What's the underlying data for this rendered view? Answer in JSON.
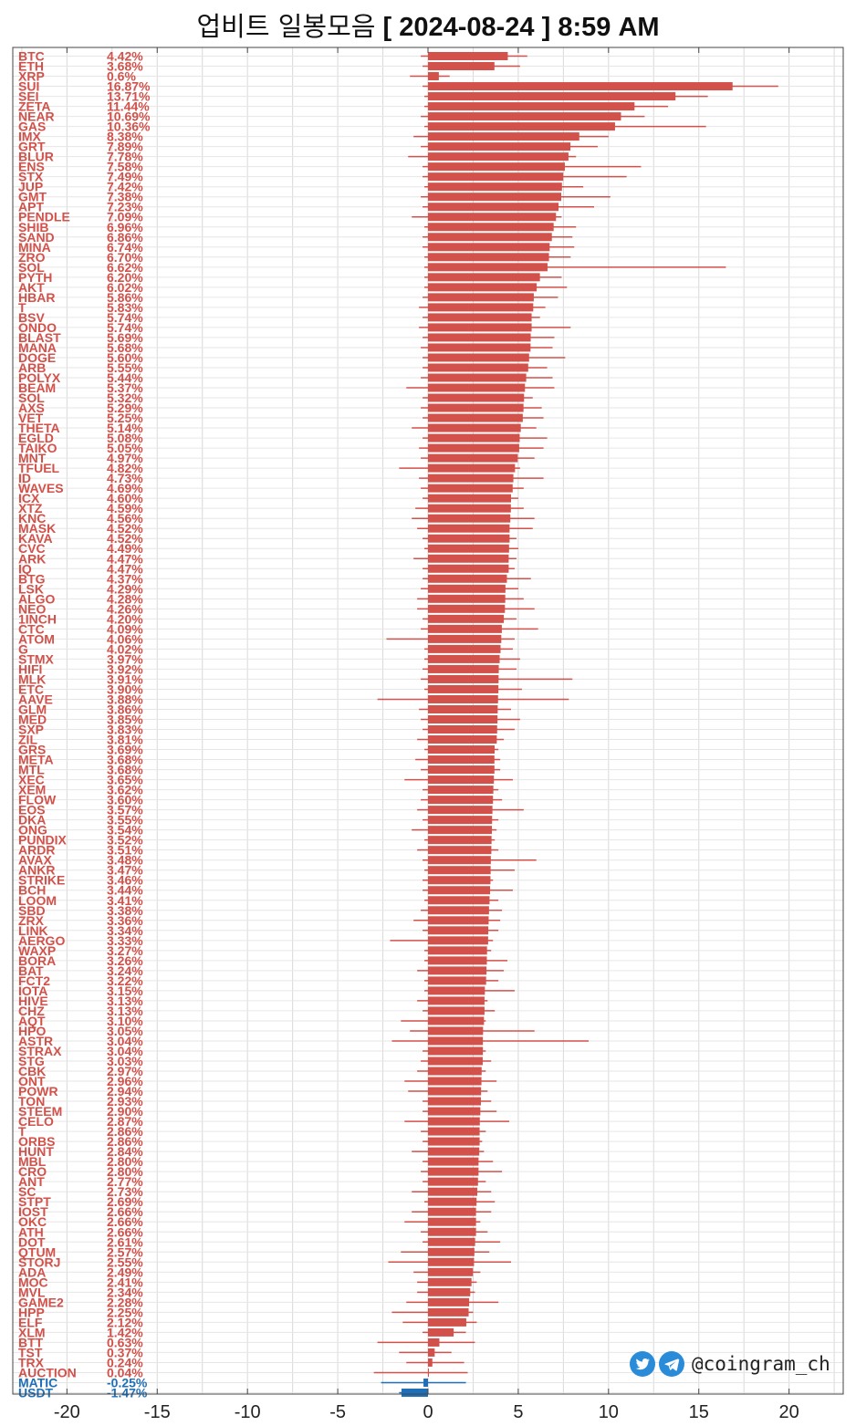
{
  "title": {
    "korean": "업비트 일봉모음",
    "date_bracketed": "[ 2024-08-24 ]",
    "time": "8:59 AM"
  },
  "brand": {
    "handle": "@coingram_ch",
    "icons": [
      "twitter-bird-icon",
      "telegram-plane-icon"
    ]
  },
  "colors": {
    "up": "#D2514A",
    "down": "#1F6FB8",
    "grid": "#d9d9d9"
  },
  "chart_data": {
    "type": "bar",
    "orientation": "horizontal",
    "xlim": [
      -23,
      23
    ],
    "xticks": [
      -20,
      -15,
      -10,
      -5,
      0,
      5,
      10,
      15,
      20
    ],
    "grid": true,
    "rows": [
      {
        "symbol": "BTC",
        "pct": "4.42%",
        "value": 4.42,
        "low": -0.4,
        "high": 5.5
      },
      {
        "symbol": "ETH",
        "pct": "3.68%",
        "value": 3.68,
        "low": -0.3,
        "high": 5.1
      },
      {
        "symbol": "XRP",
        "pct": "0.6%",
        "value": 0.6,
        "low": -1.0,
        "high": 1.2
      },
      {
        "symbol": "SUI",
        "pct": "16.87%",
        "value": 16.87,
        "low": -0.3,
        "high": 19.4
      },
      {
        "symbol": "SEI",
        "pct": "13.71%",
        "value": 13.71,
        "low": -0.2,
        "high": 15.5
      },
      {
        "symbol": "ZETA",
        "pct": "11.44%",
        "value": 11.44,
        "low": -0.2,
        "high": 13.3
      },
      {
        "symbol": "NEAR",
        "pct": "10.69%",
        "value": 10.69,
        "low": -0.4,
        "high": 12.0
      },
      {
        "symbol": "GAS",
        "pct": "10.36%",
        "value": 10.36,
        "low": -0.2,
        "high": 15.4
      },
      {
        "symbol": "IMX",
        "pct": "8.38%",
        "value": 8.38,
        "low": -0.8,
        "high": 10.0
      },
      {
        "symbol": "GRT",
        "pct": "7.89%",
        "value": 7.89,
        "low": -0.4,
        "high": 9.4
      },
      {
        "symbol": "BLUR",
        "pct": "7.78%",
        "value": 7.78,
        "low": -1.1,
        "high": 8.2
      },
      {
        "symbol": "ENS",
        "pct": "7.58%",
        "value": 7.58,
        "low": -0.3,
        "high": 11.8
      },
      {
        "symbol": "STX",
        "pct": "7.49%",
        "value": 7.49,
        "low": -0.3,
        "high": 11.0
      },
      {
        "symbol": "JUP",
        "pct": "7.42%",
        "value": 7.42,
        "low": -0.2,
        "high": 8.6
      },
      {
        "symbol": "GMT",
        "pct": "7.38%",
        "value": 7.38,
        "low": -0.4,
        "high": 10.1
      },
      {
        "symbol": "APT",
        "pct": "7.23%",
        "value": 7.23,
        "low": -0.3,
        "high": 9.2
      },
      {
        "symbol": "PENDLE",
        "pct": "7.09%",
        "value": 7.09,
        "low": -0.9,
        "high": 7.4
      },
      {
        "symbol": "SHIB",
        "pct": "6.96%",
        "value": 6.96,
        "low": -0.2,
        "high": 8.2
      },
      {
        "symbol": "SAND",
        "pct": "6.86%",
        "value": 6.86,
        "low": -0.3,
        "high": 8.0
      },
      {
        "symbol": "MINA",
        "pct": "6.74%",
        "value": 6.74,
        "low": -0.3,
        "high": 8.1
      },
      {
        "symbol": "ZRO",
        "pct": "6.70%",
        "value": 6.7,
        "low": -0.2,
        "high": 7.9
      },
      {
        "symbol": "SOL",
        "pct": "6.62%",
        "value": 6.62,
        "low": -0.2,
        "high": 16.5
      },
      {
        "symbol": "PYTH",
        "pct": "6.20%",
        "value": 6.2,
        "low": -0.2,
        "high": 7.4
      },
      {
        "symbol": "AKT",
        "pct": "6.02%",
        "value": 6.02,
        "low": -0.2,
        "high": 7.7
      },
      {
        "symbol": "HBAR",
        "pct": "5.86%",
        "value": 5.86,
        "low": -0.3,
        "high": 7.2
      },
      {
        "symbol": "T",
        "pct": "5.83%",
        "value": 5.83,
        "low": -0.5,
        "high": 6.5
      },
      {
        "symbol": "BSV",
        "pct": "5.74%",
        "value": 5.74,
        "low": -0.3,
        "high": 6.2
      },
      {
        "symbol": "ONDO",
        "pct": "5.74%",
        "value": 5.74,
        "low": -0.5,
        "high": 7.9
      },
      {
        "symbol": "BLAST",
        "pct": "5.69%",
        "value": 5.69,
        "low": -0.3,
        "high": 7.0
      },
      {
        "symbol": "MANA",
        "pct": "5.68%",
        "value": 5.68,
        "low": -0.4,
        "high": 6.9
      },
      {
        "symbol": "DOGE",
        "pct": "5.60%",
        "value": 5.6,
        "low": -0.3,
        "high": 7.6
      },
      {
        "symbol": "ARB",
        "pct": "5.55%",
        "value": 5.55,
        "low": -0.3,
        "high": 6.6
      },
      {
        "symbol": "POLYX",
        "pct": "5.44%",
        "value": 5.44,
        "low": -0.4,
        "high": 6.9
      },
      {
        "symbol": "BEAM",
        "pct": "5.37%",
        "value": 5.37,
        "low": -1.2,
        "high": 7.0
      },
      {
        "symbol": "SOL",
        "pct": "5.32%",
        "value": 5.32,
        "low": -0.3,
        "high": 5.8
      },
      {
        "symbol": "AXS",
        "pct": "5.29%",
        "value": 5.29,
        "low": -0.4,
        "high": 6.3
      },
      {
        "symbol": "VET",
        "pct": "5.25%",
        "value": 5.25,
        "low": -0.3,
        "high": 6.4
      },
      {
        "symbol": "THETA",
        "pct": "5.14%",
        "value": 5.14,
        "low": -0.9,
        "high": 6.0
      },
      {
        "symbol": "EGLD",
        "pct": "5.08%",
        "value": 5.08,
        "low": -0.3,
        "high": 6.6
      },
      {
        "symbol": "TAIKO",
        "pct": "5.05%",
        "value": 5.05,
        "low": -0.5,
        "high": 6.4
      },
      {
        "symbol": "MNT",
        "pct": "4.97%",
        "value": 4.97,
        "low": -0.4,
        "high": 5.9
      },
      {
        "symbol": "TFUEL",
        "pct": "4.82%",
        "value": 4.82,
        "low": -1.6,
        "high": 5.1
      },
      {
        "symbol": "ID",
        "pct": "4.73%",
        "value": 4.73,
        "low": -0.5,
        "high": 6.4
      },
      {
        "symbol": "WAVES",
        "pct": "4.69%",
        "value": 4.69,
        "low": -0.4,
        "high": 5.3
      },
      {
        "symbol": "ICX",
        "pct": "4.60%",
        "value": 4.6,
        "low": -0.3,
        "high": 5.0
      },
      {
        "symbol": "XTZ",
        "pct": "4.59%",
        "value": 4.59,
        "low": -0.7,
        "high": 5.3
      },
      {
        "symbol": "KNC",
        "pct": "4.56%",
        "value": 4.56,
        "low": -0.9,
        "high": 5.9
      },
      {
        "symbol": "MASK",
        "pct": "4.52%",
        "value": 4.52,
        "low": -0.6,
        "high": 5.8
      },
      {
        "symbol": "KAVA",
        "pct": "4.52%",
        "value": 4.52,
        "low": -0.3,
        "high": 4.9
      },
      {
        "symbol": "CVC",
        "pct": "4.49%",
        "value": 4.49,
        "low": -0.2,
        "high": 5.0
      },
      {
        "symbol": "ARK",
        "pct": "4.47%",
        "value": 4.47,
        "low": -0.8,
        "high": 4.9
      },
      {
        "symbol": "IQ",
        "pct": "4.47%",
        "value": 4.47,
        "low": -0.3,
        "high": 4.8
      },
      {
        "symbol": "BTG",
        "pct": "4.37%",
        "value": 4.37,
        "low": -0.3,
        "high": 5.7
      },
      {
        "symbol": "LSK",
        "pct": "4.29%",
        "value": 4.29,
        "low": -0.4,
        "high": 5.0
      },
      {
        "symbol": "ALGO",
        "pct": "4.28%",
        "value": 4.28,
        "low": -0.6,
        "high": 5.3
      },
      {
        "symbol": "NEO",
        "pct": "4.26%",
        "value": 4.26,
        "low": -0.6,
        "high": 5.9
      },
      {
        "symbol": "1INCH",
        "pct": "4.20%",
        "value": 4.2,
        "low": -0.3,
        "high": 4.9
      },
      {
        "symbol": "CTC",
        "pct": "4.09%",
        "value": 4.09,
        "low": -0.4,
        "high": 6.1
      },
      {
        "symbol": "ATOM",
        "pct": "4.06%",
        "value": 4.06,
        "low": -2.3,
        "high": 4.8
      },
      {
        "symbol": "G",
        "pct": "4.02%",
        "value": 4.02,
        "low": -0.2,
        "high": 4.7
      },
      {
        "symbol": "STMX",
        "pct": "3.97%",
        "value": 3.97,
        "low": -0.2,
        "high": 5.1
      },
      {
        "symbol": "HIFI",
        "pct": "3.92%",
        "value": 3.92,
        "low": -0.3,
        "high": 4.9
      },
      {
        "symbol": "MLK",
        "pct": "3.91%",
        "value": 3.91,
        "low": -0.4,
        "high": 8.0
      },
      {
        "symbol": "ETC",
        "pct": "3.90%",
        "value": 3.9,
        "low": -0.2,
        "high": 5.2
      },
      {
        "symbol": "AAVE",
        "pct": "3.88%",
        "value": 3.88,
        "low": -2.8,
        "high": 7.8
      },
      {
        "symbol": "GLM",
        "pct": "3.86%",
        "value": 3.86,
        "low": -0.5,
        "high": 4.6
      },
      {
        "symbol": "MED",
        "pct": "3.85%",
        "value": 3.85,
        "low": -0.4,
        "high": 5.1
      },
      {
        "symbol": "SXP",
        "pct": "3.83%",
        "value": 3.83,
        "low": -0.3,
        "high": 4.8
      },
      {
        "symbol": "ZIL",
        "pct": "3.81%",
        "value": 3.81,
        "low": -0.6,
        "high": 4.2
      },
      {
        "symbol": "GRS",
        "pct": "3.69%",
        "value": 3.69,
        "low": -0.2,
        "high": 3.9
      },
      {
        "symbol": "META",
        "pct": "3.68%",
        "value": 3.68,
        "low": -0.7,
        "high": 4.0
      },
      {
        "symbol": "MTL",
        "pct": "3.68%",
        "value": 3.68,
        "low": -0.4,
        "high": 4.0
      },
      {
        "symbol": "XEC",
        "pct": "3.65%",
        "value": 3.65,
        "low": -1.3,
        "high": 4.7
      },
      {
        "symbol": "XEM",
        "pct": "3.62%",
        "value": 3.62,
        "low": -0.3,
        "high": 3.9
      },
      {
        "symbol": "FLOW",
        "pct": "3.60%",
        "value": 3.6,
        "low": -0.4,
        "high": 4.1
      },
      {
        "symbol": "EOS",
        "pct": "3.57%",
        "value": 3.57,
        "low": -0.6,
        "high": 5.3
      },
      {
        "symbol": "DKA",
        "pct": "3.55%",
        "value": 3.55,
        "low": -0.3,
        "high": 3.9
      },
      {
        "symbol": "ONG",
        "pct": "3.54%",
        "value": 3.54,
        "low": -0.9,
        "high": 3.8
      },
      {
        "symbol": "PUNDIX",
        "pct": "3.52%",
        "value": 3.52,
        "low": -0.2,
        "high": 3.7
      },
      {
        "symbol": "ARDR",
        "pct": "3.51%",
        "value": 3.51,
        "low": -0.6,
        "high": 3.9
      },
      {
        "symbol": "AVAX",
        "pct": "3.48%",
        "value": 3.48,
        "low": -0.3,
        "high": 6.0
      },
      {
        "symbol": "ANKR",
        "pct": "3.47%",
        "value": 3.47,
        "low": -0.2,
        "high": 4.8
      },
      {
        "symbol": "STRIKE",
        "pct": "3.46%",
        "value": 3.46,
        "low": -0.3,
        "high": 3.6
      },
      {
        "symbol": "BCH",
        "pct": "3.44%",
        "value": 3.44,
        "low": -0.3,
        "high": 4.7
      },
      {
        "symbol": "LOOM",
        "pct": "3.41%",
        "value": 3.41,
        "low": -0.2,
        "high": 3.9
      },
      {
        "symbol": "SBD",
        "pct": "3.38%",
        "value": 3.38,
        "low": -0.4,
        "high": 4.1
      },
      {
        "symbol": "ZRX",
        "pct": "3.36%",
        "value": 3.36,
        "low": -0.8,
        "high": 4.0
      },
      {
        "symbol": "LINK",
        "pct": "3.34%",
        "value": 3.34,
        "low": -0.3,
        "high": 3.9
      },
      {
        "symbol": "AERGO",
        "pct": "3.33%",
        "value": 3.33,
        "low": -2.1,
        "high": 3.6
      },
      {
        "symbol": "WAXP",
        "pct": "3.27%",
        "value": 3.27,
        "low": -0.2,
        "high": 3.5
      },
      {
        "symbol": "BORA",
        "pct": "3.26%",
        "value": 3.26,
        "low": -0.2,
        "high": 4.4
      },
      {
        "symbol": "BAT",
        "pct": "3.24%",
        "value": 3.24,
        "low": -0.6,
        "high": 4.2
      },
      {
        "symbol": "FCT2",
        "pct": "3.22%",
        "value": 3.22,
        "low": -0.2,
        "high": 3.9
      },
      {
        "symbol": "IOTA",
        "pct": "3.15%",
        "value": 3.15,
        "low": -0.2,
        "high": 4.8
      },
      {
        "symbol": "HIVE",
        "pct": "3.13%",
        "value": 3.13,
        "low": -0.6,
        "high": 3.3
      },
      {
        "symbol": "CHZ",
        "pct": "3.13%",
        "value": 3.13,
        "low": -0.3,
        "high": 3.7
      },
      {
        "symbol": "AQT",
        "pct": "3.10%",
        "value": 3.1,
        "low": -1.5,
        "high": 3.2
      },
      {
        "symbol": "HPO",
        "pct": "3.05%",
        "value": 3.05,
        "low": -1.0,
        "high": 5.9
      },
      {
        "symbol": "ASTR",
        "pct": "3.04%",
        "value": 3.04,
        "low": -2.0,
        "high": 8.9
      },
      {
        "symbol": "STRAX",
        "pct": "3.04%",
        "value": 3.04,
        "low": -0.3,
        "high": 3.2
      },
      {
        "symbol": "STG",
        "pct": "3.03%",
        "value": 3.03,
        "low": -0.4,
        "high": 3.5
      },
      {
        "symbol": "CBK",
        "pct": "2.97%",
        "value": 2.97,
        "low": -0.6,
        "high": 3.2
      },
      {
        "symbol": "ONT",
        "pct": "2.96%",
        "value": 2.96,
        "low": -1.3,
        "high": 3.8
      },
      {
        "symbol": "POWR",
        "pct": "2.94%",
        "value": 2.94,
        "low": -1.1,
        "high": 3.3
      },
      {
        "symbol": "TON",
        "pct": "2.93%",
        "value": 2.93,
        "low": -0.3,
        "high": 3.5
      },
      {
        "symbol": "STEEM",
        "pct": "2.90%",
        "value": 2.9,
        "low": -0.3,
        "high": 3.8
      },
      {
        "symbol": "CELO",
        "pct": "2.87%",
        "value": 2.87,
        "low": -1.3,
        "high": 4.5
      },
      {
        "symbol": "T",
        "pct": "2.86%",
        "value": 2.86,
        "low": -0.4,
        "high": 3.2
      },
      {
        "symbol": "ORBS",
        "pct": "2.86%",
        "value": 2.86,
        "low": -0.3,
        "high": 3.0
      },
      {
        "symbol": "HUNT",
        "pct": "2.84%",
        "value": 2.84,
        "low": -0.9,
        "high": 3.1
      },
      {
        "symbol": "MBL",
        "pct": "2.80%",
        "value": 2.8,
        "low": -0.3,
        "high": 3.6
      },
      {
        "symbol": "CRO",
        "pct": "2.80%",
        "value": 2.8,
        "low": -0.4,
        "high": 4.1
      },
      {
        "symbol": "ANT",
        "pct": "2.77%",
        "value": 2.77,
        "low": -0.3,
        "high": 3.2
      },
      {
        "symbol": "SC",
        "pct": "2.73%",
        "value": 2.73,
        "low": -0.9,
        "high": 3.5
      },
      {
        "symbol": "STPT",
        "pct": "2.69%",
        "value": 2.69,
        "low": -0.2,
        "high": 3.7
      },
      {
        "symbol": "IOST",
        "pct": "2.66%",
        "value": 2.66,
        "low": -0.9,
        "high": 3.5
      },
      {
        "symbol": "OKC",
        "pct": "2.66%",
        "value": 2.66,
        "low": -1.3,
        "high": 2.9
      },
      {
        "symbol": "ATH",
        "pct": "2.66%",
        "value": 2.66,
        "low": -0.4,
        "high": 3.3
      },
      {
        "symbol": "DOT",
        "pct": "2.61%",
        "value": 2.61,
        "low": -0.3,
        "high": 4.0
      },
      {
        "symbol": "QTUM",
        "pct": "2.57%",
        "value": 2.57,
        "low": -1.5,
        "high": 3.4
      },
      {
        "symbol": "STORJ",
        "pct": "2.55%",
        "value": 2.55,
        "low": -2.2,
        "high": 4.6
      },
      {
        "symbol": "ADA",
        "pct": "2.49%",
        "value": 2.49,
        "low": -0.8,
        "high": 2.9
      },
      {
        "symbol": "MOC",
        "pct": "2.41%",
        "value": 2.41,
        "low": -0.6,
        "high": 2.7
      },
      {
        "symbol": "MVL",
        "pct": "2.34%",
        "value": 2.34,
        "low": -0.6,
        "high": 2.6
      },
      {
        "symbol": "GAME2",
        "pct": "2.28%",
        "value": 2.28,
        "low": -1.2,
        "high": 3.9
      },
      {
        "symbol": "HPP",
        "pct": "2.25%",
        "value": 2.25,
        "low": -2.0,
        "high": 2.5
      },
      {
        "symbol": "ELF",
        "pct": "2.12%",
        "value": 2.12,
        "low": -1.4,
        "high": 2.7
      },
      {
        "symbol": "XLM",
        "pct": "1.42%",
        "value": 1.42,
        "low": -0.3,
        "high": 2.1
      },
      {
        "symbol": "BTT",
        "pct": "0.63%",
        "value": 0.63,
        "low": -2.8,
        "high": 2.6
      },
      {
        "symbol": "TST",
        "pct": "0.37%",
        "value": 0.37,
        "low": -1.6,
        "high": 1.3
      },
      {
        "symbol": "TRX",
        "pct": "0.24%",
        "value": 0.24,
        "low": -1.2,
        "high": 2.0
      },
      {
        "symbol": "AUCTION",
        "pct": "0.04%",
        "value": 0.04,
        "low": -3.0,
        "high": 2.2
      },
      {
        "symbol": "MATIC",
        "pct": "-0.25%",
        "value": -0.25,
        "low": -2.6,
        "high": 2.1
      },
      {
        "symbol": "USDT",
        "pct": "-1.47%",
        "value": -1.47,
        "low": -1.6,
        "high": 0.0
      }
    ]
  }
}
